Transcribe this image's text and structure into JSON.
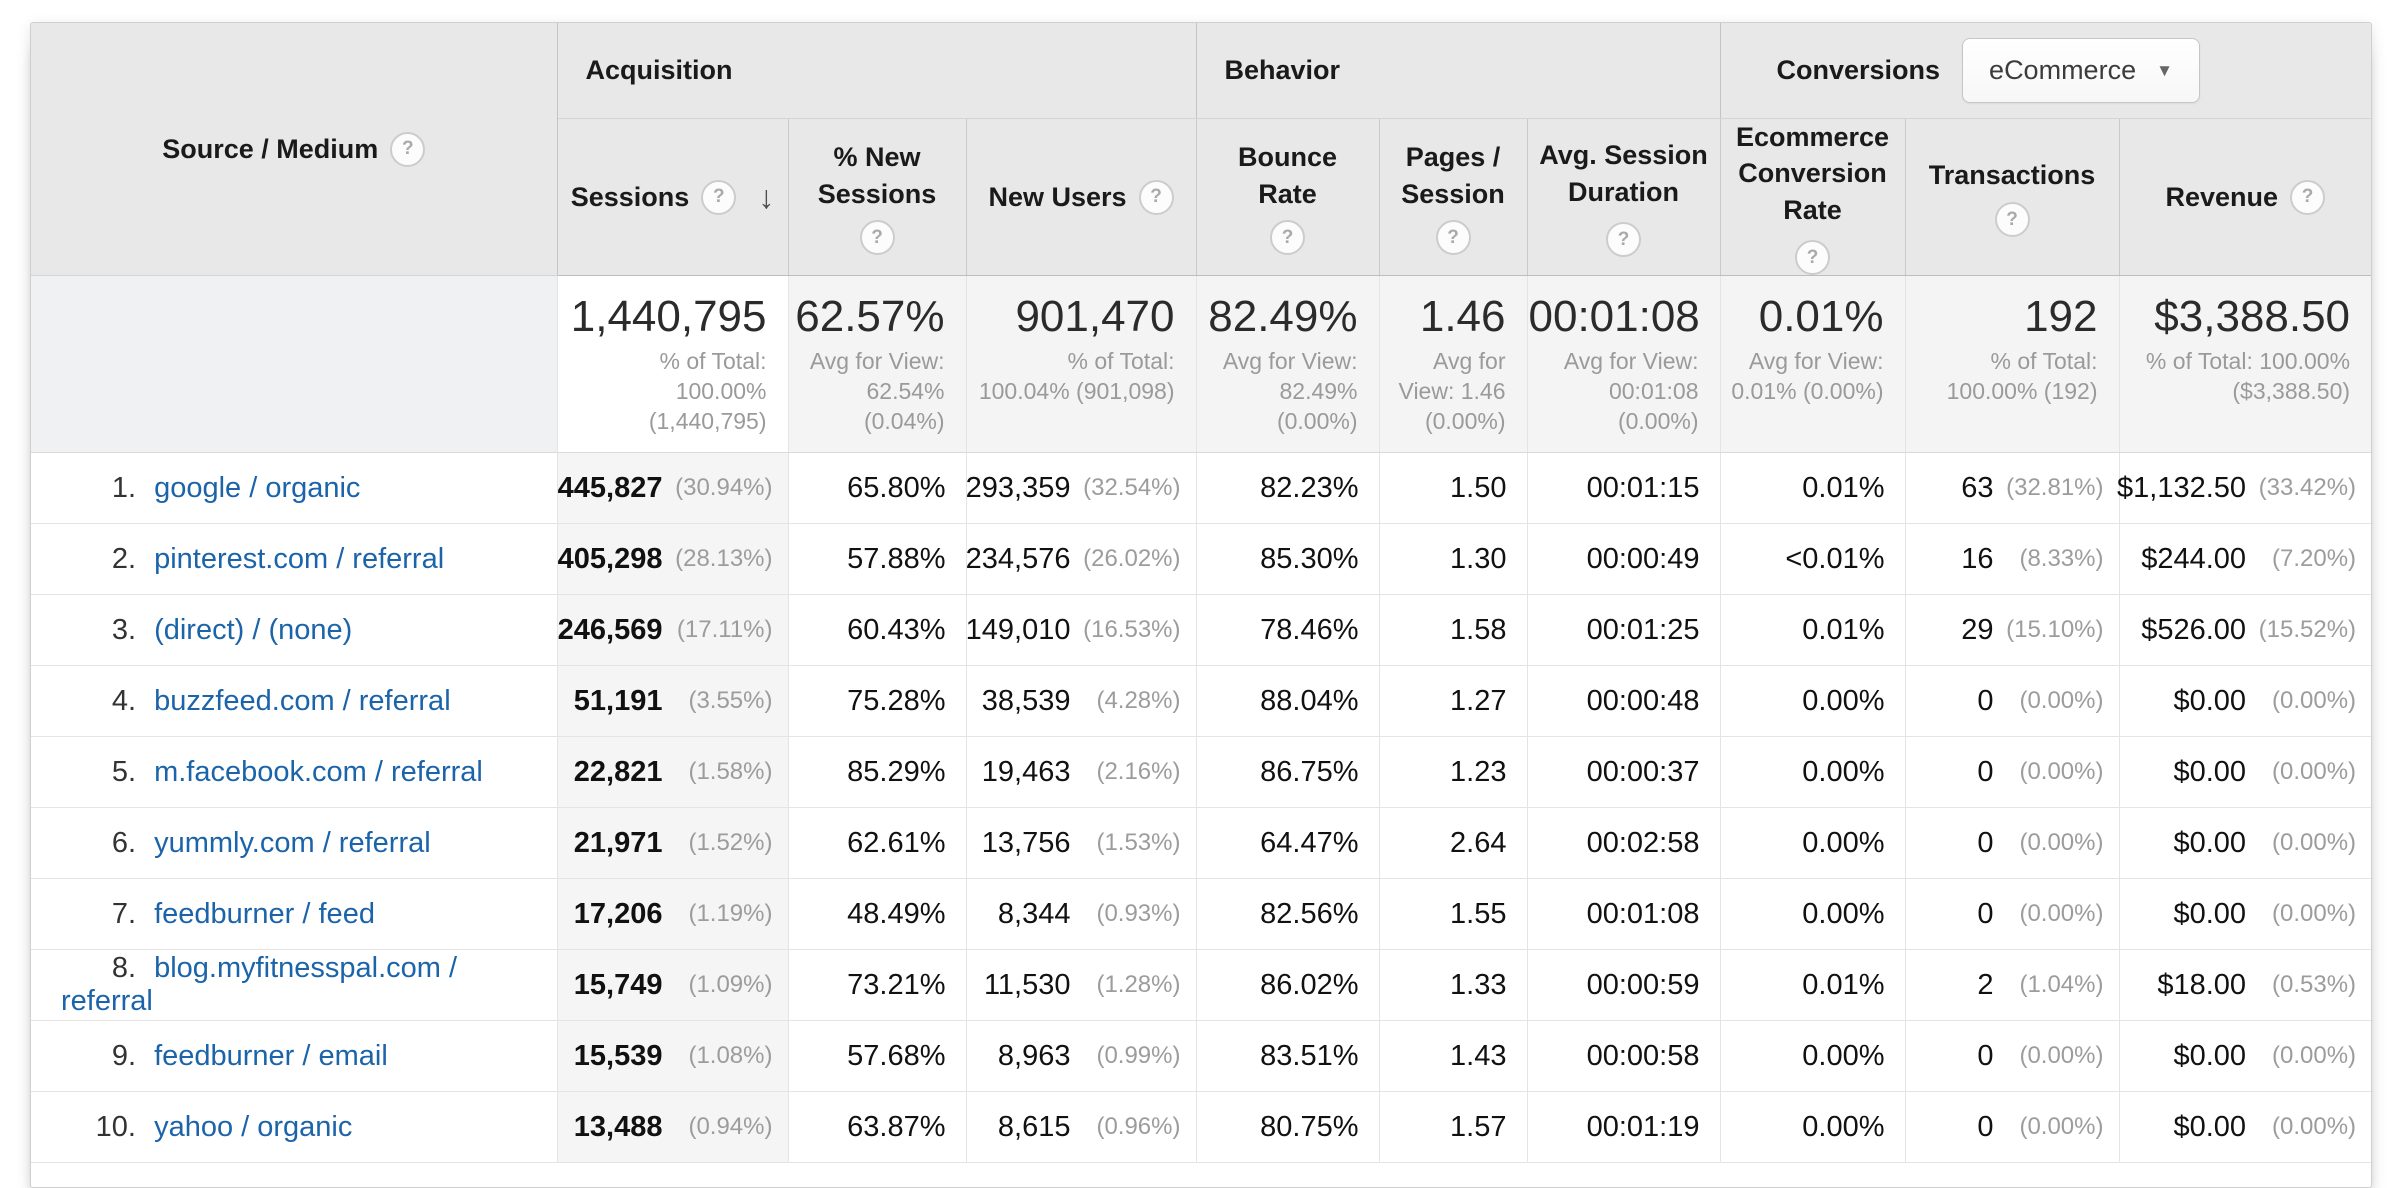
{
  "colors": {
    "link_blue": "#1c64aa",
    "header_bg": "#e8e8e8",
    "sorted_column_bg": "#f5f5f5"
  },
  "icons": {
    "help": "?",
    "sort_desc": "↓",
    "dropdown_caret": "▼"
  },
  "header": {
    "groups": {
      "acquisition": "Acquisition",
      "behavior": "Behavior",
      "conversions": "Conversions"
    },
    "conversions_selector": "eCommerce",
    "columns": {
      "source_medium": {
        "label": "Source / Medium"
      },
      "sessions": {
        "label": "Sessions",
        "sort": "descending"
      },
      "percent_new_sessions": {
        "label": "% New Sessions"
      },
      "new_users": {
        "label": "New Users"
      },
      "bounce_rate": {
        "label": "Bounce Rate"
      },
      "pages_per_session": {
        "label": "Pages / Session"
      },
      "avg_session_duration": {
        "label": "Avg. Session Duration"
      },
      "ecommerce_conversion_rate": {
        "label": "Ecommerce Conversion Rate"
      },
      "transactions": {
        "label": "Transactions"
      },
      "revenue": {
        "label": "Revenue"
      }
    }
  },
  "totals": {
    "sessions": {
      "value": "1,440,795",
      "sub": "% of Total:\n100.00%\n(1,440,795)"
    },
    "percent_new_sessions": {
      "value": "62.57%",
      "sub": "Avg for View:\n62.54%\n(0.04%)"
    },
    "new_users": {
      "value": "901,470",
      "sub": "% of Total:\n100.04% (901,098)"
    },
    "bounce_rate": {
      "value": "82.49%",
      "sub": "Avg for View:\n82.49%\n(0.00%)"
    },
    "pages_per_session": {
      "value": "1.46",
      "sub": "Avg for\nView: 1.46\n(0.00%)"
    },
    "avg_session_duration": {
      "value": "00:01:08",
      "sub": "Avg for View:\n00:01:08\n(0.00%)"
    },
    "ecommerce_conversion_rate": {
      "value": "0.01%",
      "sub": "Avg for View:\n0.01% (0.00%)"
    },
    "transactions": {
      "value": "192",
      "sub": "% of Total:\n100.00% (192)"
    },
    "revenue": {
      "value": "$3,388.50",
      "sub": "% of Total: 100.00%\n($3,388.50)"
    }
  },
  "table": {
    "rows": [
      {
        "rank": "1.",
        "source": "google / organic",
        "sessions": "445,827",
        "sessions_pct": "(30.94%)",
        "new_sessions": "65.80%",
        "new_users": "293,359",
        "new_users_pct": "(32.54%)",
        "bounce": "82.23%",
        "pages": "1.50",
        "duration": "00:01:15",
        "ecr": "0.01%",
        "transactions": "63",
        "transactions_pct": "(32.81%)",
        "revenue": "$1,132.50",
        "revenue_pct": "(33.42%)"
      },
      {
        "rank": "2.",
        "source": "pinterest.com / referral",
        "sessions": "405,298",
        "sessions_pct": "(28.13%)",
        "new_sessions": "57.88%",
        "new_users": "234,576",
        "new_users_pct": "(26.02%)",
        "bounce": "85.30%",
        "pages": "1.30",
        "duration": "00:00:49",
        "ecr": "<0.01%",
        "transactions": "16",
        "transactions_pct": "(8.33%)",
        "revenue": "$244.00",
        "revenue_pct": "(7.20%)"
      },
      {
        "rank": "3.",
        "source": "(direct) / (none)",
        "sessions": "246,569",
        "sessions_pct": "(17.11%)",
        "new_sessions": "60.43%",
        "new_users": "149,010",
        "new_users_pct": "(16.53%)",
        "bounce": "78.46%",
        "pages": "1.58",
        "duration": "00:01:25",
        "ecr": "0.01%",
        "transactions": "29",
        "transactions_pct": "(15.10%)",
        "revenue": "$526.00",
        "revenue_pct": "(15.52%)"
      },
      {
        "rank": "4.",
        "source": "buzzfeed.com / referral",
        "sessions": "51,191",
        "sessions_pct": "(3.55%)",
        "new_sessions": "75.28%",
        "new_users": "38,539",
        "new_users_pct": "(4.28%)",
        "bounce": "88.04%",
        "pages": "1.27",
        "duration": "00:00:48",
        "ecr": "0.00%",
        "transactions": "0",
        "transactions_pct": "(0.00%)",
        "revenue": "$0.00",
        "revenue_pct": "(0.00%)"
      },
      {
        "rank": "5.",
        "source": "m.facebook.com / referral",
        "sessions": "22,821",
        "sessions_pct": "(1.58%)",
        "new_sessions": "85.29%",
        "new_users": "19,463",
        "new_users_pct": "(2.16%)",
        "bounce": "86.75%",
        "pages": "1.23",
        "duration": "00:00:37",
        "ecr": "0.00%",
        "transactions": "0",
        "transactions_pct": "(0.00%)",
        "revenue": "$0.00",
        "revenue_pct": "(0.00%)"
      },
      {
        "rank": "6.",
        "source": "yummly.com / referral",
        "sessions": "21,971",
        "sessions_pct": "(1.52%)",
        "new_sessions": "62.61%",
        "new_users": "13,756",
        "new_users_pct": "(1.53%)",
        "bounce": "64.47%",
        "pages": "2.64",
        "duration": "00:02:58",
        "ecr": "0.00%",
        "transactions": "0",
        "transactions_pct": "(0.00%)",
        "revenue": "$0.00",
        "revenue_pct": "(0.00%)"
      },
      {
        "rank": "7.",
        "source": "feedburner / feed",
        "sessions": "17,206",
        "sessions_pct": "(1.19%)",
        "new_sessions": "48.49%",
        "new_users": "8,344",
        "new_users_pct": "(0.93%)",
        "bounce": "82.56%",
        "pages": "1.55",
        "duration": "00:01:08",
        "ecr": "0.00%",
        "transactions": "0",
        "transactions_pct": "(0.00%)",
        "revenue": "$0.00",
        "revenue_pct": "(0.00%)"
      },
      {
        "rank": "8.",
        "source": "blog.myfitnesspal.com / referral",
        "sessions": "15,749",
        "sessions_pct": "(1.09%)",
        "new_sessions": "73.21%",
        "new_users": "11,530",
        "new_users_pct": "(1.28%)",
        "bounce": "86.02%",
        "pages": "1.33",
        "duration": "00:00:59",
        "ecr": "0.01%",
        "transactions": "2",
        "transactions_pct": "(1.04%)",
        "revenue": "$18.00",
        "revenue_pct": "(0.53%)"
      },
      {
        "rank": "9.",
        "source": "feedburner / email",
        "sessions": "15,539",
        "sessions_pct": "(1.08%)",
        "new_sessions": "57.68%",
        "new_users": "8,963",
        "new_users_pct": "(0.99%)",
        "bounce": "83.51%",
        "pages": "1.43",
        "duration": "00:00:58",
        "ecr": "0.00%",
        "transactions": "0",
        "transactions_pct": "(0.00%)",
        "revenue": "$0.00",
        "revenue_pct": "(0.00%)"
      },
      {
        "rank": "10.",
        "source": "yahoo / organic",
        "sessions": "13,488",
        "sessions_pct": "(0.94%)",
        "new_sessions": "63.87%",
        "new_users": "8,615",
        "new_users_pct": "(0.96%)",
        "bounce": "80.75%",
        "pages": "1.57",
        "duration": "00:01:19",
        "ecr": "0.00%",
        "transactions": "0",
        "transactions_pct": "(0.00%)",
        "revenue": "$0.00",
        "revenue_pct": "(0.00%)"
      }
    ]
  }
}
